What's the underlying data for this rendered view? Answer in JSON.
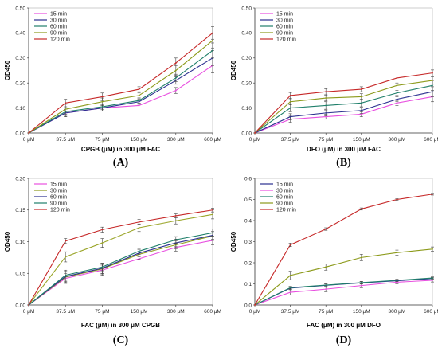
{
  "chart_data": [
    {
      "type": "line",
      "panel_label": "(A)",
      "xlabel": "CPGB (μM) in 300 μM FAC",
      "ylabel": "OD450",
      "categories": [
        "0 μM",
        "37.5 μM",
        "75 μM",
        "150 μM",
        "300 μM",
        "600 μM"
      ],
      "ylim": [
        0,
        0.5
      ],
      "yticks": [
        "0.00",
        "0.10",
        "0.20",
        "0.30",
        "0.40",
        "0.50"
      ],
      "ytick_values": [
        0,
        0.1,
        0.2,
        0.3,
        0.4,
        0.5
      ],
      "legend_position": "top-left",
      "series": [
        {
          "name": "15 min",
          "color": "#e84fe0",
          "values": [
            0,
            0.08,
            0.1,
            0.11,
            0.17,
            0.27
          ],
          "errors": [
            0,
            0.015,
            0.012,
            0.01,
            0.012,
            0.03
          ]
        },
        {
          "name": "30 min",
          "color": "#2a2f8f",
          "values": [
            0,
            0.08,
            0.1,
            0.125,
            0.21,
            0.3
          ],
          "errors": [
            0,
            0.015,
            0.012,
            0.01,
            0.015,
            0.03
          ]
        },
        {
          "name": "60 min",
          "color": "#1f7f6a",
          "values": [
            0,
            0.085,
            0.105,
            0.13,
            0.22,
            0.33
          ],
          "errors": [
            0,
            0.015,
            0.012,
            0.01,
            0.015,
            0.03
          ]
        },
        {
          "name": "90 min",
          "color": "#8c9a1a",
          "values": [
            0,
            0.095,
            0.125,
            0.15,
            0.25,
            0.37
          ],
          "errors": [
            0,
            0.02,
            0.015,
            0.01,
            0.02,
            0.03
          ]
        },
        {
          "name": "120 min",
          "color": "#c62828",
          "values": [
            0,
            0.12,
            0.145,
            0.175,
            0.28,
            0.4
          ],
          "errors": [
            0,
            0.015,
            0.015,
            0.01,
            0.02,
            0.025
          ]
        }
      ]
    },
    {
      "type": "line",
      "panel_label": "(B)",
      "xlabel": "DFO (μM) in 300 μM FAC",
      "ylabel": "OD450",
      "categories": [
        "0 μM",
        "37.5 μM",
        "75 μM",
        "150 μM",
        "300 μM",
        "600 μM"
      ],
      "ylim": [
        0,
        0.5
      ],
      "yticks": [
        "0.00",
        "0.10",
        "0.20",
        "0.30",
        "0.40",
        "0.50"
      ],
      "ytick_values": [
        0,
        0.1,
        0.2,
        0.3,
        0.4,
        0.5
      ],
      "legend_position": "top-left",
      "series": [
        {
          "name": "15 min",
          "color": "#e84fe0",
          "values": [
            0,
            0.055,
            0.065,
            0.075,
            0.12,
            0.145
          ],
          "errors": [
            0,
            0.012,
            0.01,
            0.01,
            0.01,
            0.02
          ]
        },
        {
          "name": "30 min",
          "color": "#2a2f8f",
          "values": [
            0,
            0.065,
            0.08,
            0.09,
            0.135,
            0.165
          ],
          "errors": [
            0,
            0.012,
            0.012,
            0.012,
            0.01,
            0.02
          ]
        },
        {
          "name": "60 min",
          "color": "#1f7f6a",
          "values": [
            0,
            0.1,
            0.11,
            0.12,
            0.16,
            0.19
          ],
          "errors": [
            0,
            0.015,
            0.015,
            0.015,
            0.01,
            0.02
          ]
        },
        {
          "name": "90 min",
          "color": "#8c9a1a",
          "values": [
            0,
            0.125,
            0.14,
            0.145,
            0.19,
            0.21
          ],
          "errors": [
            0,
            0.012,
            0.012,
            0.012,
            0.01,
            0.015
          ]
        },
        {
          "name": "120 min",
          "color": "#c62828",
          "values": [
            0,
            0.15,
            0.165,
            0.175,
            0.22,
            0.24
          ],
          "errors": [
            0,
            0.012,
            0.012,
            0.01,
            0.008,
            0.012
          ]
        }
      ]
    },
    {
      "type": "line",
      "panel_label": "(C)",
      "xlabel": "FAC (μM) in 300 μM CPGB",
      "ylabel": "OD450",
      "categories": [
        "0 μM",
        "37.5 μM",
        "75 μM",
        "150 μM",
        "300 μM",
        "600 μM"
      ],
      "ylim": [
        0,
        0.2
      ],
      "yticks": [
        "0.00",
        "0.05",
        "0.10",
        "0.15",
        "0.20"
      ],
      "ytick_values": [
        0,
        0.05,
        0.1,
        0.15,
        0.2
      ],
      "legend_position": "top-left",
      "series": [
        {
          "name": "15  min",
          "color": "#e84fe0",
          "values": [
            0,
            0.042,
            0.055,
            0.073,
            0.091,
            0.102
          ],
          "errors": [
            0,
            0.008,
            0.008,
            0.008,
            0.006,
            0.007
          ]
        },
        {
          "name": "30 min",
          "color": "#8c9a1a",
          "values": [
            0,
            0.044,
            0.057,
            0.08,
            0.095,
            0.109
          ],
          "errors": [
            0,
            0.008,
            0.008,
            0.008,
            0.006,
            0.007
          ]
        },
        {
          "name": "60 min",
          "color": "#2a2f8f",
          "values": [
            0,
            0.045,
            0.058,
            0.082,
            0.098,
            0.11
          ],
          "errors": [
            0,
            0.008,
            0.008,
            0.006,
            0.006,
            0.006
          ]
        },
        {
          "name": "90 min",
          "color": "#1f7f6a",
          "values": [
            0,
            0.047,
            0.06,
            0.085,
            0.103,
            0.114
          ],
          "errors": [
            0,
            0.008,
            0.006,
            0.005,
            0.005,
            0.006
          ]
        },
        {
          "name": "120 min",
          "color": "#c62828",
          "values": [
            0,
            0.101,
            0.119,
            0.131,
            0.141,
            0.15
          ],
          "errors": [
            0,
            0.004,
            0.004,
            0.004,
            0.003,
            0.003
          ]
        }
      ],
      "extra_series": [
        {
          "color": "#9aa528",
          "values": [
            0,
            0.076,
            0.098,
            0.122,
            0.133,
            0.143
          ],
          "errors": [
            0,
            0.008,
            0.007,
            0.006,
            0.005,
            0.007
          ]
        }
      ]
    },
    {
      "type": "line",
      "panel_label": "(D)",
      "xlabel": "FAC (μM) in 300 μM DFO",
      "ylabel": "OD450",
      "categories": [
        "0 μM",
        "37.5 μM",
        "75 μM",
        "150 μM",
        "300 μM",
        "600 μM"
      ],
      "ylim": [
        0,
        0.6
      ],
      "yticks": [
        "0.0",
        "0.1",
        "0.2",
        "0.3",
        "0.4",
        "0.5",
        "0.6"
      ],
      "ytick_values": [
        0,
        0.1,
        0.2,
        0.3,
        0.4,
        0.5,
        0.6
      ],
      "legend_position": "top-left",
      "series": [
        {
          "name": "15 min",
          "color": "#2a2f8f",
          "values": [
            0,
            0.08,
            0.093,
            0.105,
            0.115,
            0.125
          ],
          "errors": [
            0,
            0.006,
            0.006,
            0.006,
            0.005,
            0.006
          ]
        },
        {
          "name": "30 min",
          "color": "#e84fe0",
          "values": [
            0,
            0.06,
            0.075,
            0.092,
            0.108,
            0.117
          ],
          "errors": [
            0,
            0.012,
            0.012,
            0.01,
            0.008,
            0.008
          ]
        },
        {
          "name": "60 min",
          "color": "#1f7f6a",
          "values": [
            0,
            0.082,
            0.094,
            0.106,
            0.117,
            0.128
          ],
          "errors": [
            0,
            0.006,
            0.006,
            0.006,
            0.005,
            0.005
          ]
        },
        {
          "name": "90 min",
          "color": "#8c9a1a",
          "values": [
            0,
            0.14,
            0.18,
            0.225,
            0.248,
            0.265
          ],
          "errors": [
            0,
            0.02,
            0.015,
            0.015,
            0.012,
            0.01
          ]
        },
        {
          "name": "120 min",
          "color": "#c62828",
          "values": [
            0,
            0.285,
            0.36,
            0.455,
            0.5,
            0.525
          ],
          "errors": [
            0,
            0.008,
            0.006,
            0.005,
            0.004,
            0.004
          ]
        }
      ]
    }
  ]
}
